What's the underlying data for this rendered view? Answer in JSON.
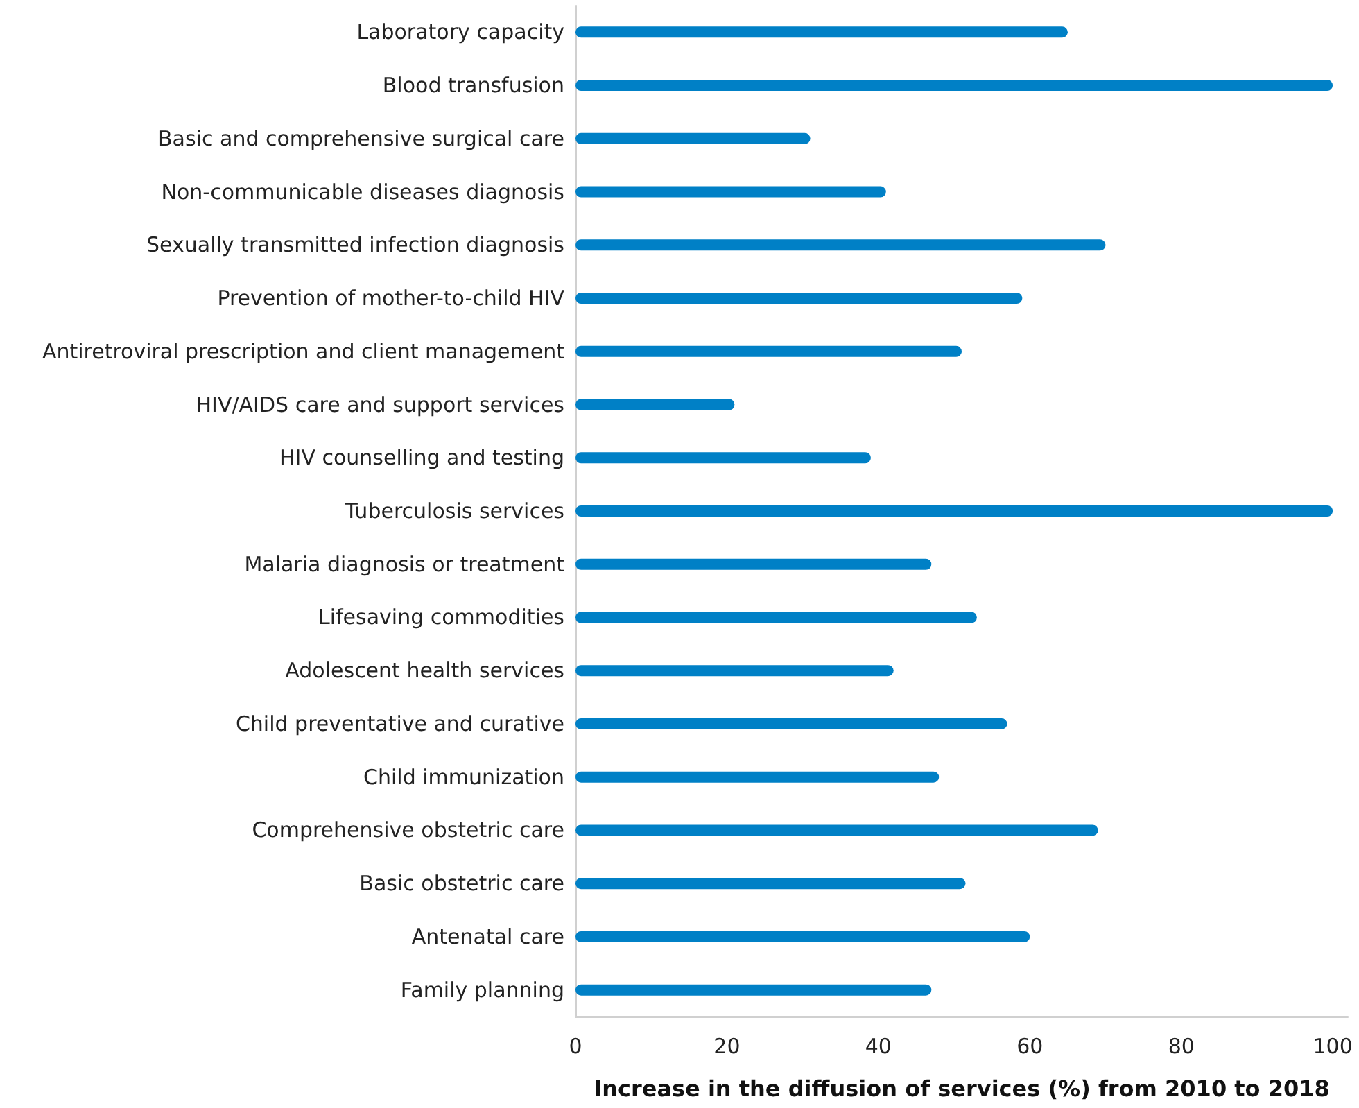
{
  "chart_data": {
    "type": "bar",
    "orientation": "horizontal",
    "xlabel": "Increase in the diffusion of services (%) from 2010 to 2018",
    "categories": [
      "Laboratory capacity",
      "Blood transfusion",
      "Basic and comprehensive surgical care",
      "Non-communicable diseases diagnosis",
      "Sexually transmitted infection diagnosis",
      "Prevention of mother-to-child HIV",
      "Antiretroviral prescription and client management",
      "HIV/AIDS care and support services",
      "HIV counselling and testing",
      "Tuberculosis services",
      "Malaria diagnosis or treatment",
      "Lifesaving commodities",
      "Adolescent health services",
      "Child preventative and curative",
      "Child immunization",
      "Comprehensive obstetric care",
      "Basic obstetric care",
      "Antenatal care",
      "Family planning"
    ],
    "values": [
      65,
      100,
      31,
      41,
      70,
      59,
      51,
      21,
      39,
      100,
      47,
      53,
      42,
      57,
      48,
      69,
      51.5,
      60,
      47
    ],
    "color": "#0080c6",
    "xlim": [
      0,
      102
    ],
    "xticks": [
      0,
      20,
      40,
      60,
      80,
      100
    ],
    "grid": false
  }
}
